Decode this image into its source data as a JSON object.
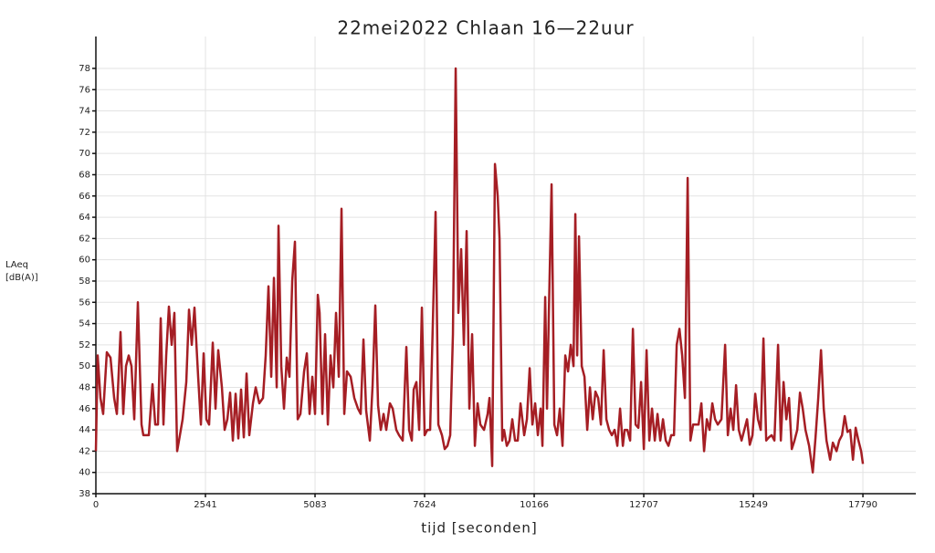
{
  "chart_data": {
    "type": "line",
    "title": "22mei2022 Chlaan 16—22uur",
    "x_label": "tijd [seconden]",
    "y_label": [
      "LAeq",
      "[dB(A)]"
    ],
    "color": "#a51e24",
    "grid": true,
    "xlim": [
      0,
      19017
    ],
    "xticks": [
      0,
      2541,
      5083,
      7624,
      10166,
      12707,
      15249,
      17790
    ],
    "ylim": [
      38,
      81
    ],
    "yticks": [
      38,
      40,
      42,
      44,
      46,
      48,
      50,
      52,
      54,
      56,
      58,
      60,
      62,
      64,
      66,
      68,
      70,
      72,
      74,
      76,
      78
    ],
    "x": [
      0,
      42,
      106,
      169,
      254,
      339,
      424,
      487,
      572,
      635,
      699,
      762,
      826,
      890,
      974,
      1059,
      1101,
      1165,
      1228,
      1313,
      1377,
      1440,
      1504,
      1567,
      1631,
      1694,
      1758,
      1821,
      1885,
      1949,
      2012,
      2097,
      2160,
      2224,
      2287,
      2372,
      2436,
      2499,
      2563,
      2626,
      2711,
      2775,
      2838,
      2923,
      2986,
      3050,
      3113,
      3177,
      3241,
      3304,
      3368,
      3431,
      3495,
      3558,
      3643,
      3707,
      3791,
      3876,
      3939,
      4003,
      4067,
      4130,
      4194,
      4236,
      4300,
      4363,
      4427,
      4490,
      4554,
      4617,
      4681,
      4744,
      4829,
      4893,
      4956,
      5020,
      5083,
      5147,
      5189,
      5253,
      5316,
      5380,
      5443,
      5507,
      5570,
      5634,
      5697,
      5761,
      5824,
      5909,
      5994,
      6079,
      6142,
      6206,
      6269,
      6354,
      6418,
      6481,
      6545,
      6608,
      6672,
      6735,
      6820,
      6884,
      6968,
      7032,
      7117,
      7201,
      7265,
      7328,
      7371,
      7434,
      7498,
      7561,
      7625,
      7688,
      7752,
      7815,
      7879,
      7943,
      8027,
      8091,
      8154,
      8218,
      8281,
      8345,
      8408,
      8472,
      8535,
      8599,
      8662,
      8726,
      8790,
      8853,
      8917,
      9002,
      9086,
      9129,
      9192,
      9256,
      9319,
      9362,
      9425,
      9467,
      9531,
      9595,
      9658,
      9722,
      9785,
      9849,
      9934,
      9997,
      10061,
      10124,
      10188,
      10251,
      10315,
      10357,
      10421,
      10463,
      10506,
      10569,
      10633,
      10696,
      10760,
      10823,
      10887,
      10951,
      11014,
      11078,
      11120,
      11163,
      11205,
      11268,
      11332,
      11396,
      11459,
      11523,
      11586,
      11650,
      11713,
      11777,
      11840,
      11904,
      11967,
      12031,
      12094,
      12158,
      12222,
      12264,
      12327,
      12391,
      12455,
      12518,
      12582,
      12645,
      12709,
      12772,
      12836,
      12899,
      12963,
      13026,
      13090,
      13153,
      13217,
      13280,
      13344,
      13408,
      13471,
      13535,
      13598,
      13662,
      13725,
      13789,
      13852,
      13916,
      13979,
      14043,
      14106,
      14170,
      14234,
      14297,
      14361,
      14424,
      14509,
      14594,
      14657,
      14721,
      14784,
      14848,
      14911,
      14975,
      15039,
      15102,
      15166,
      15229,
      15293,
      15356,
      15420,
      15483,
      15547,
      15610,
      15674,
      15737,
      15822,
      15886,
      15949,
      16013,
      16076,
      16140,
      16203,
      16267,
      16330,
      16394,
      16458,
      16542,
      16627,
      16691,
      16754,
      16818,
      16881,
      16945,
      17030,
      17093,
      17178,
      17241,
      17305,
      17368,
      17432,
      17495,
      17559,
      17622,
      17686,
      17749,
      17790
    ],
    "values": [
      42,
      51,
      47,
      45.5,
      51.3,
      50.8,
      47,
      45.5,
      53.2,
      45.5,
      50,
      51,
      50,
      45,
      56,
      44.5,
      43.5,
      43.5,
      43.5,
      48.3,
      44.5,
      44.5,
      54.5,
      44.5,
      51,
      55.6,
      52,
      55,
      42,
      43.5,
      45,
      48.5,
      55.3,
      52,
      55.5,
      49,
      44.5,
      51.2,
      45,
      44.5,
      52.2,
      46,
      51.5,
      48,
      44,
      45,
      47.5,
      43,
      47.4,
      43.2,
      47.8,
      43.3,
      49.3,
      43.5,
      46.5,
      48,
      46.5,
      47,
      51,
      57.5,
      49,
      58.3,
      48,
      63.2,
      50,
      46,
      50.8,
      49,
      58,
      61.7,
      45,
      45.5,
      49.5,
      51.2,
      45.5,
      49,
      45.5,
      56.7,
      55,
      45.5,
      53,
      44.5,
      51,
      48,
      55,
      49,
      64.8,
      45.5,
      49.5,
      49,
      47,
      46,
      45.5,
      52.5,
      45.8,
      43,
      48.2,
      55.7,
      46.3,
      44,
      45.5,
      44,
      46.5,
      46,
      44,
      43.5,
      43,
      51.8,
      44,
      43,
      47.8,
      48.5,
      44,
      55.5,
      43.5,
      44,
      44,
      54,
      64.5,
      44.5,
      43.5,
      42.2,
      42.5,
      43.5,
      53,
      78,
      55,
      61,
      52,
      62.7,
      46,
      53,
      42.5,
      46.5,
      44.5,
      44,
      45.5,
      47,
      40.6,
      69,
      66,
      62,
      43,
      44,
      42.5,
      43,
      45,
      43,
      43,
      46.5,
      43.5,
      45,
      49.8,
      44.5,
      46.5,
      43.5,
      46,
      42.5,
      56.5,
      46,
      55,
      67.1,
      44.5,
      43.5,
      46,
      42.5,
      51,
      49.5,
      52,
      50,
      64.3,
      51,
      62.2,
      50,
      49,
      44,
      48,
      45,
      47.6,
      47,
      44.5,
      51.5,
      45,
      44,
      43.5,
      44,
      42.5,
      46,
      42.5,
      44,
      44,
      43,
      53.5,
      44.5,
      44.2,
      48.5,
      42.2,
      51.5,
      43,
      46,
      43,
      45.5,
      43,
      45,
      43,
      42.5,
      43.5,
      43.5,
      52,
      53.5,
      51,
      47,
      67.7,
      43,
      44.5,
      44.5,
      44.5,
      46.5,
      42,
      45,
      44,
      46.5,
      45,
      44.5,
      45,
      52,
      43.5,
      46,
      44,
      48.2,
      44,
      43,
      44,
      45,
      42.6,
      43.5,
      47.4,
      45,
      44,
      52.6,
      43,
      43.3,
      43.5,
      43,
      52,
      43,
      48.5,
      45,
      47,
      42.2,
      43,
      44,
      47.5,
      46,
      44,
      42.5,
      40,
      43.3,
      47,
      51.5,
      46,
      43,
      41.2,
      42.8,
      42,
      43,
      43.5,
      45.3,
      43.8,
      44,
      41.2,
      44.2,
      43,
      42,
      40.8
    ]
  }
}
